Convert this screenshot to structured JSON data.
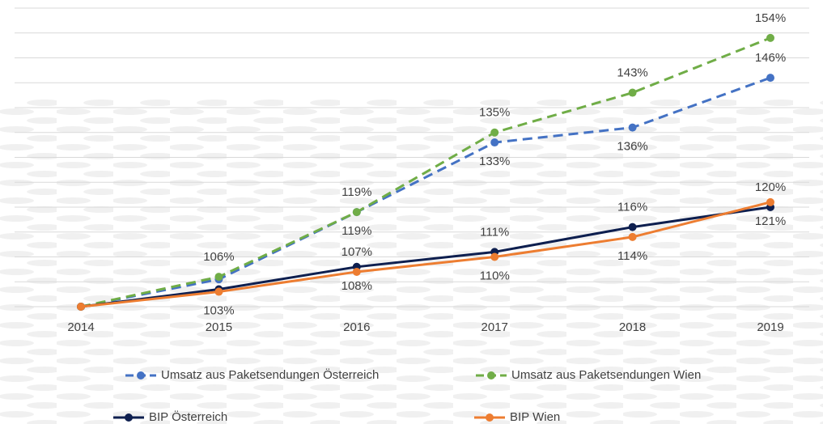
{
  "chart_data": {
    "type": "line",
    "categories": [
      "2014",
      "2015",
      "2016",
      "2017",
      "2018",
      "2019"
    ],
    "series": [
      {
        "name": "Umsatz aus Paketsendungen Österreich",
        "color": "#4472c4",
        "dashed": true,
        "values": [
          100,
          105.5,
          119,
          133,
          136,
          146
        ],
        "value_labels": [
          null,
          null,
          "119%",
          "133%",
          "136%",
          "146%"
        ]
      },
      {
        "name": "Umsatz aus Paketsendungen Wien",
        "color": "#70ad47",
        "dashed": true,
        "values": [
          100,
          106,
          119,
          135,
          143,
          154
        ],
        "value_labels": [
          null,
          "106%",
          "119%",
          "135%",
          "143%",
          "154%"
        ]
      },
      {
        "name": "BIP Österreich",
        "color": "#0e1f4f",
        "dashed": false,
        "values": [
          100,
          103.5,
          108,
          111,
          116,
          120
        ],
        "value_labels": [
          null,
          null,
          "108%",
          "111%",
          "116%",
          "120%"
        ]
      },
      {
        "name": "BIP Wien",
        "color": "#ed7d31",
        "dashed": false,
        "values": [
          100,
          103,
          107,
          110,
          114,
          121
        ],
        "value_labels": [
          null,
          "103%",
          "107%",
          "110%",
          "114%",
          "121%"
        ]
      }
    ],
    "ylim": [
      100,
      160
    ],
    "yticks": [
      100,
      105,
      110,
      115,
      120,
      125,
      130,
      135,
      140,
      145,
      150,
      155,
      160
    ],
    "grid": true
  }
}
